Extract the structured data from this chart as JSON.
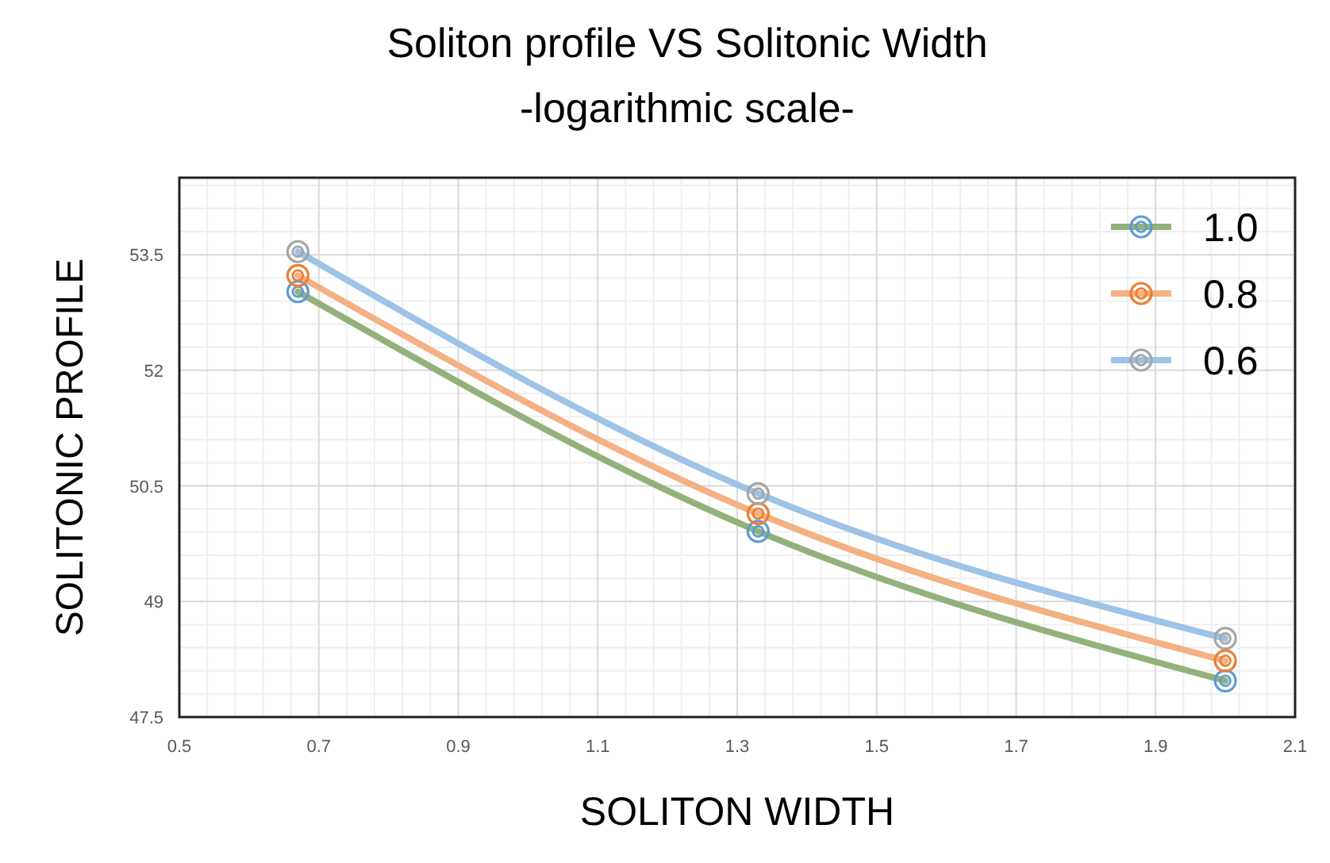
{
  "chart_data": {
    "type": "line",
    "title": "Soliton profile VS Solitonic Width",
    "subtitle": "-logarithmic scale-",
    "xlabel": "SOLITON WIDTH",
    "ylabel": "SOLITONIC PROFILE",
    "x": [
      0.67,
      1.33,
      2.0
    ],
    "series": [
      {
        "name": "1.0",
        "color": "#93b27b",
        "colors": [
          "#5b9bd5",
          "#5b9bd5",
          "#5b9bd5"
        ],
        "values": [
          53.02,
          49.91,
          47.97
        ]
      },
      {
        "name": "0.8",
        "color": "#f4b183",
        "colors": [
          "#ed7d31",
          "#ed7d31",
          "#ed7d31"
        ],
        "values": [
          53.23,
          50.14,
          48.23
        ]
      },
      {
        "name": "0.6",
        "color": "#9dc3e6",
        "colors": [
          "#a5a5a5",
          "#a5a5a5",
          "#a5a5a5"
        ],
        "values": [
          53.54,
          50.4,
          48.52
        ]
      }
    ],
    "xlim": [
      0.5,
      2.1
    ],
    "xticks": [
      0.5,
      0.7,
      0.9,
      1.1,
      1.3,
      1.5,
      1.7,
      1.9,
      2.1
    ],
    "ylim": [
      47.5,
      54.5
    ],
    "yticks": [
      47.5,
      49,
      50.5,
      52,
      53.5
    ],
    "grid": true,
    "legend": "top right",
    "marker": "circle",
    "line_style": "solid"
  }
}
